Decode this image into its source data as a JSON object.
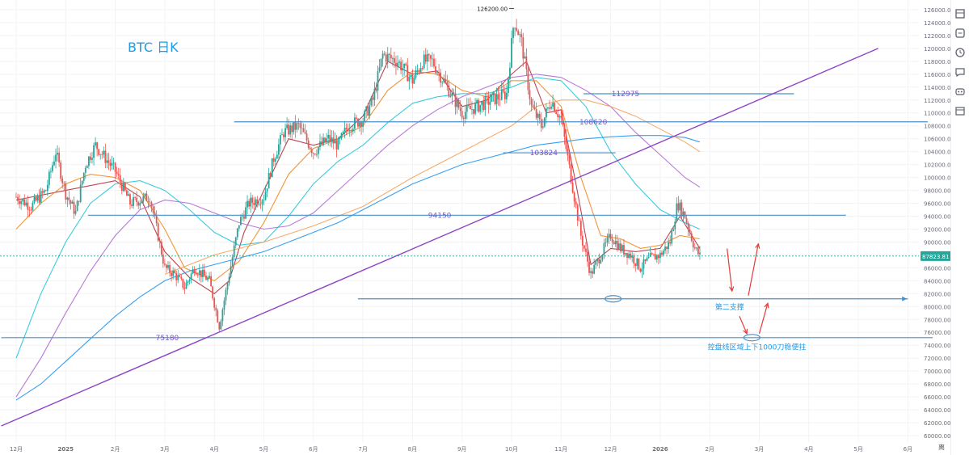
{
  "chart_data": {
    "type": "candlestick",
    "title": "BTC   日K",
    "y_axis": {
      "min": 59000,
      "max": 127500,
      "ticks": [
        60000,
        62000,
        64000,
        66000,
        68000,
        70000,
        72000,
        74000,
        76000,
        78000,
        80000,
        82000,
        84000,
        86000,
        88000,
        90000,
        92000,
        94000,
        96000,
        98000,
        100000,
        102000,
        104000,
        106000,
        108000,
        110000,
        112000,
        114000,
        116000,
        118000,
        120000,
        122000,
        124000,
        126000
      ],
      "tick_labels": [
        "60000.00",
        "62000.00",
        "64000.00",
        "66000.00",
        "68000.00",
        "70000.00",
        "72000.00",
        "74000.00",
        "76000.00",
        "78000.00",
        "80000.00",
        "82000.00",
        "84000.00",
        "86000.00",
        "88000.00",
        "90000.00",
        "92000.00",
        "94000.00",
        "96000.00",
        "98000.00",
        "100000.00",
        "102000.00",
        "104000.00",
        "106000.00",
        "108000.00",
        "110000.00",
        "112000.00",
        "114000.00",
        "116000.00",
        "118000.00",
        "120000.00",
        "122000.00",
        "124000.00",
        "126000.00"
      ]
    },
    "x_axis": {
      "labels": [
        "12月",
        "2025",
        "2月",
        "3月",
        "4月",
        "5月",
        "6月",
        "7月",
        "8月",
        "9月",
        "10月",
        "11月",
        "12月",
        "2026",
        "2月",
        "3月",
        "4月",
        "5月",
        "6月"
      ]
    },
    "current_price": 87823.81,
    "current_price_label": "87823.81",
    "peak": {
      "month_index": 10.05,
      "value": 126200,
      "label": "126200.00"
    },
    "price_path": [
      [
        0.0,
        97000
      ],
      [
        0.3,
        95500
      ],
      [
        0.6,
        98000
      ],
      [
        0.8,
        104000
      ],
      [
        1.0,
        97500
      ],
      [
        1.2,
        94500
      ],
      [
        1.4,
        102000
      ],
      [
        1.6,
        105000
      ],
      [
        2.0,
        101000
      ],
      [
        2.3,
        96000
      ],
      [
        2.7,
        97000
      ],
      [
        3.0,
        86000
      ],
      [
        3.2,
        85000
      ],
      [
        3.4,
        83000
      ],
      [
        3.6,
        86000
      ],
      [
        3.9,
        84000
      ],
      [
        4.1,
        77000
      ],
      [
        4.3,
        85000
      ],
      [
        4.5,
        93000
      ],
      [
        4.7,
        96000
      ],
      [
        5.0,
        97000
      ],
      [
        5.2,
        103000
      ],
      [
        5.4,
        107000
      ],
      [
        5.7,
        108000
      ],
      [
        6.0,
        104000
      ],
      [
        6.3,
        106000
      ],
      [
        6.5,
        105000
      ],
      [
        6.7,
        108000
      ],
      [
        7.0,
        109000
      ],
      [
        7.2,
        112000
      ],
      [
        7.4,
        119000
      ],
      [
        7.7,
        118000
      ],
      [
        8.0,
        115000
      ],
      [
        8.2,
        118000
      ],
      [
        8.4,
        118000
      ],
      [
        8.7,
        114000
      ],
      [
        9.0,
        110000
      ],
      [
        9.3,
        111000
      ],
      [
        9.6,
        112000
      ],
      [
        9.9,
        113000
      ],
      [
        10.05,
        124500
      ],
      [
        10.2,
        121000
      ],
      [
        10.4,
        111000
      ],
      [
        10.6,
        108000
      ],
      [
        10.8,
        112000
      ],
      [
        11.0,
        109000
      ],
      [
        11.2,
        100000
      ],
      [
        11.4,
        91000
      ],
      [
        11.6,
        85000
      ],
      [
        11.8,
        88000
      ],
      [
        12.0,
        91000
      ],
      [
        12.2,
        89000
      ],
      [
        12.4,
        88000
      ],
      [
        12.6,
        86000
      ],
      [
        12.8,
        87500
      ],
      [
        13.0,
        88000
      ],
      [
        13.2,
        90000
      ],
      [
        13.35,
        96000
      ],
      [
        13.5,
        94000
      ],
      [
        13.7,
        89000
      ],
      [
        13.8,
        87823
      ]
    ],
    "moving_averages": [
      {
        "color": "#b5303f",
        "points": [
          [
            0.0,
            96500
          ],
          [
            1.0,
            98000
          ],
          [
            2.0,
            99500
          ],
          [
            2.5,
            97000
          ],
          [
            3.0,
            88500
          ],
          [
            3.5,
            84500
          ],
          [
            4.0,
            82000
          ],
          [
            4.3,
            84000
          ],
          [
            4.6,
            91500
          ],
          [
            5.0,
            98000
          ],
          [
            5.5,
            106000
          ],
          [
            6.0,
            105000
          ],
          [
            6.5,
            106000
          ],
          [
            7.0,
            109500
          ],
          [
            7.5,
            118000
          ],
          [
            8.0,
            116000
          ],
          [
            8.5,
            116500
          ],
          [
            9.0,
            111000
          ],
          [
            9.5,
            112000
          ],
          [
            10.0,
            116000
          ],
          [
            10.3,
            118000
          ],
          [
            10.7,
            110000
          ],
          [
            11.0,
            110500
          ],
          [
            11.3,
            99000
          ],
          [
            11.6,
            86500
          ],
          [
            12.0,
            89000
          ],
          [
            12.5,
            88500
          ],
          [
            13.0,
            89000
          ],
          [
            13.4,
            94000
          ],
          [
            13.8,
            89000
          ]
        ]
      },
      {
        "color": "#f08a24",
        "points": [
          [
            0.0,
            92000
          ],
          [
            0.5,
            96000
          ],
          [
            1.0,
            99000
          ],
          [
            1.5,
            100500
          ],
          [
            2.0,
            100000
          ],
          [
            2.5,
            98000
          ],
          [
            3.0,
            92000
          ],
          [
            3.4,
            86000
          ],
          [
            4.0,
            84000
          ],
          [
            4.5,
            87000
          ],
          [
            5.0,
            93000
          ],
          [
            5.5,
            100500
          ],
          [
            6.0,
            104500
          ],
          [
            6.5,
            106000
          ],
          [
            7.0,
            108000
          ],
          [
            7.5,
            113500
          ],
          [
            8.0,
            116500
          ],
          [
            8.5,
            116000
          ],
          [
            9.0,
            113500
          ],
          [
            9.5,
            112500
          ],
          [
            10.0,
            115000
          ],
          [
            10.5,
            115000
          ],
          [
            11.0,
            111000
          ],
          [
            11.4,
            100000
          ],
          [
            11.8,
            91000
          ],
          [
            12.2,
            90500
          ],
          [
            12.6,
            89000
          ],
          [
            13.0,
            89500
          ],
          [
            13.4,
            91000
          ],
          [
            13.8,
            90500
          ]
        ]
      },
      {
        "color": "#26c6da",
        "points": [
          [
            0.0,
            72000
          ],
          [
            0.5,
            82000
          ],
          [
            1.0,
            90000
          ],
          [
            1.5,
            96000
          ],
          [
            2.0,
            99000
          ],
          [
            2.5,
            99500
          ],
          [
            3.0,
            98000
          ],
          [
            3.5,
            95000
          ],
          [
            4.0,
            91500
          ],
          [
            4.5,
            89500
          ],
          [
            5.0,
            90000
          ],
          [
            5.5,
            94000
          ],
          [
            6.0,
            99000
          ],
          [
            6.5,
            102500
          ],
          [
            7.0,
            105000
          ],
          [
            7.5,
            108500
          ],
          [
            8.0,
            111500
          ],
          [
            8.5,
            112500
          ],
          [
            9.0,
            113000
          ],
          [
            9.5,
            113000
          ],
          [
            10.0,
            114000
          ],
          [
            10.5,
            115500
          ],
          [
            11.0,
            115000
          ],
          [
            11.5,
            111000
          ],
          [
            12.0,
            104000
          ],
          [
            12.5,
            99000
          ],
          [
            13.0,
            95000
          ],
          [
            13.5,
            93000
          ],
          [
            13.8,
            92000
          ]
        ]
      },
      {
        "color": "#b36ad1",
        "points": [
          [
            0.0,
            66000
          ],
          [
            0.5,
            72000
          ],
          [
            1.0,
            79000
          ],
          [
            1.5,
            85500
          ],
          [
            2.0,
            91000
          ],
          [
            2.5,
            95000
          ],
          [
            3.0,
            96500
          ],
          [
            3.5,
            96000
          ],
          [
            4.0,
            94500
          ],
          [
            4.5,
            93000
          ],
          [
            5.0,
            92000
          ],
          [
            5.5,
            92500
          ],
          [
            6.0,
            94500
          ],
          [
            6.5,
            98000
          ],
          [
            7.0,
            101500
          ],
          [
            7.5,
            105000
          ],
          [
            8.0,
            108000
          ],
          [
            8.5,
            110500
          ],
          [
            9.0,
            112500
          ],
          [
            9.5,
            114000
          ],
          [
            10.0,
            115500
          ],
          [
            10.5,
            116000
          ],
          [
            11.0,
            115500
          ],
          [
            11.5,
            113500
          ],
          [
            12.0,
            111000
          ],
          [
            12.5,
            107000
          ],
          [
            13.0,
            103500
          ],
          [
            13.5,
            100000
          ],
          [
            13.8,
            98500
          ]
        ]
      },
      {
        "color": "#2196f3",
        "points": [
          [
            0.0,
            65500
          ],
          [
            0.5,
            68000
          ],
          [
            1.0,
            71500
          ],
          [
            1.5,
            75000
          ],
          [
            2.0,
            78500
          ],
          [
            2.5,
            81500
          ],
          [
            3.0,
            84000
          ],
          [
            3.5,
            85500
          ],
          [
            4.0,
            86500
          ],
          [
            4.5,
            87500
          ],
          [
            5.0,
            88500
          ],
          [
            5.5,
            90000
          ],
          [
            6.0,
            91500
          ],
          [
            6.5,
            93000
          ],
          [
            7.0,
            95000
          ],
          [
            7.5,
            97000
          ],
          [
            8.0,
            99000
          ],
          [
            8.5,
            100500
          ],
          [
            9.0,
            102000
          ],
          [
            9.5,
            103000
          ],
          [
            10.0,
            104000
          ],
          [
            10.5,
            105000
          ],
          [
            11.0,
            105500
          ],
          [
            11.5,
            106000
          ],
          [
            12.0,
            106300
          ],
          [
            12.5,
            106500
          ],
          [
            13.0,
            106500
          ],
          [
            13.5,
            106200
          ],
          [
            13.8,
            105500
          ]
        ]
      },
      {
        "color": "#f5a25a",
        "points": [
          [
            3.0,
            85000
          ],
          [
            4.0,
            88000
          ],
          [
            5.0,
            90000
          ],
          [
            6.0,
            92500
          ],
          [
            7.0,
            95500
          ],
          [
            8.0,
            100000
          ],
          [
            9.0,
            104000
          ],
          [
            10.0,
            108000
          ],
          [
            10.5,
            111000
          ],
          [
            11.0,
            112000
          ],
          [
            11.5,
            112000
          ],
          [
            12.0,
            111000
          ],
          [
            12.5,
            109500
          ],
          [
            13.0,
            107500
          ],
          [
            13.5,
            105500
          ],
          [
            13.8,
            104000
          ]
        ]
      }
    ],
    "horizontal_levels": [
      {
        "value": 112975,
        "label": "112975",
        "x_from": 11.45,
        "x_to": 15.7
      },
      {
        "value": 108620,
        "label": "108620",
        "x_from": 4.4,
        "x_to": 18.4
      },
      {
        "value": 103824,
        "label": "103824",
        "x_from": 9.83,
        "x_to": 12.1
      },
      {
        "value": 94150,
        "label": "94150",
        "x_from": 1.45,
        "x_to": 16.75
      },
      {
        "value": 81200,
        "label": "",
        "x_from": 6.9,
        "x_to": 18.0
      },
      {
        "value": 75180,
        "label": "75180",
        "x_from": -0.3,
        "x_to": 18.5
      }
    ],
    "trend_line": {
      "from": [
        -0.3,
        61500
      ],
      "to": [
        17.4,
        120000
      ]
    },
    "current_line_value": 87823.81,
    "annotations": [
      {
        "text": "第二支撑",
        "x": 14.4,
        "value": 79900
      },
      {
        "text": "控盘线区域上下1000刀稳便拄",
        "x": 14.95,
        "value": 73700
      }
    ],
    "highlight_ellipses": [
      {
        "x": 12.05,
        "value": 81200
      },
      {
        "x": 14.85,
        "value": 75180
      }
    ],
    "arrows": [
      {
        "from": [
          14.35,
          89000
        ],
        "to": [
          14.45,
          82400
        ]
      },
      {
        "from": [
          14.78,
          81700
        ],
        "to": [
          14.98,
          89700
        ]
      },
      {
        "from": [
          14.6,
          78500
        ],
        "to": [
          14.75,
          75800
        ]
      },
      {
        "from": [
          15.0,
          75800
        ],
        "to": [
          15.17,
          80500
        ]
      }
    ],
    "colors": {
      "candle_up": "#26a69a",
      "candle_down": "#ef5350",
      "level_line": "#4a90c8",
      "trend_line": "#8e44c6",
      "arrow": "#e83a3a",
      "title": "#1e9be5",
      "annotation": "#1e9be5",
      "price_tag_bg": "#26a69a"
    }
  },
  "corner_label": "离"
}
